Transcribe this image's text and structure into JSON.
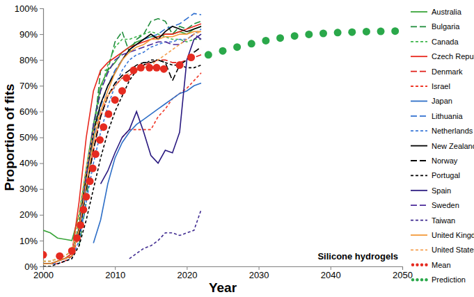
{
  "chart_data": {
    "type": "line",
    "x_label": "Year",
    "y_label": "Proportion of fits",
    "annotations": [
      {
        "text": "Silicone hydrogels"
      }
    ],
    "xlim": [
      2000,
      2050
    ],
    "ylim": [
      0,
      100
    ],
    "xticks": [
      2000,
      2010,
      2020,
      2030,
      2040,
      2050
    ],
    "yticks": [
      {
        "value": 0,
        "label": "0%"
      },
      {
        "value": 10,
        "label": "10%"
      },
      {
        "value": 20,
        "label": "20%"
      },
      {
        "value": 30,
        "label": "30%"
      },
      {
        "value": 40,
        "label": "40%"
      },
      {
        "value": 50,
        "label": "50%"
      },
      {
        "value": 60,
        "label": "60%"
      },
      {
        "value": 70,
        "label": "70%"
      },
      {
        "value": 80,
        "label": "80%"
      },
      {
        "value": 90,
        "label": "90%"
      },
      {
        "value": 100,
        "label": "100%"
      }
    ],
    "grid": false,
    "legend": "right",
    "series": [
      {
        "name": "Australia",
        "color": "#3aa53a",
        "line_style": "solid",
        "x": [
          2000,
          2001,
          2002,
          2003,
          2004,
          2005,
          2006,
          2007,
          2008,
          2009,
          2010,
          2011,
          2012,
          2013,
          2014,
          2015,
          2016,
          2017,
          2018,
          2019,
          2020,
          2021,
          2022
        ],
        "values": [
          14,
          13,
          11,
          10.5,
          10,
          20,
          38,
          55,
          70,
          76,
          79,
          83,
          85,
          87,
          88,
          89,
          89,
          90,
          90,
          91,
          90,
          92,
          93
        ]
      },
      {
        "name": "Bulgaria",
        "color": "#1e8c3a",
        "line_style": "longdash",
        "x": [
          2005,
          2006,
          2007,
          2008,
          2009,
          2010,
          2011,
          2012,
          2013,
          2014,
          2015,
          2016,
          2017,
          2018,
          2019,
          2020,
          2021,
          2022
        ],
        "values": [
          8,
          25,
          50,
          76,
          76,
          87,
          91,
          83,
          88,
          90,
          95,
          96,
          95,
          90,
          93,
          92,
          94,
          95
        ]
      },
      {
        "name": "Canada",
        "color": "#3cb54a",
        "line_style": "dashed",
        "x": [
          2000,
          2001,
          2002,
          2003,
          2004,
          2005,
          2006,
          2007,
          2008,
          2009,
          2010,
          2011,
          2012,
          2013,
          2014,
          2015,
          2016,
          2017,
          2018,
          2019,
          2020,
          2021,
          2022
        ],
        "values": [
          2,
          2,
          3,
          4,
          6,
          18,
          35,
          52,
          68,
          78,
          85,
          88,
          88,
          89,
          90,
          91,
          90,
          89,
          88,
          88,
          87,
          88,
          88
        ]
      },
      {
        "name": "Czech Republic",
        "color": "#e8261c",
        "line_style": "solid",
        "x": [
          2000,
          2001,
          2002,
          2003,
          2004,
          2005,
          2006,
          2007,
          2008,
          2009,
          2010,
          2011,
          2012,
          2013,
          2014,
          2015,
          2016,
          2017,
          2018,
          2019,
          2020,
          2021,
          2022
        ],
        "values": [
          1,
          1,
          2,
          3,
          5,
          25,
          50,
          68,
          76,
          79,
          81,
          83,
          85,
          86,
          87,
          88,
          89,
          90,
          90,
          91,
          92,
          93,
          94
        ]
      },
      {
        "name": "Denmark",
        "color": "#e0201a",
        "line_style": "longdash",
        "x": [
          2000,
          2001,
          2002,
          2003,
          2004,
          2005,
          2006,
          2007,
          2008,
          2009,
          2010,
          2011,
          2012,
          2013,
          2014,
          2015,
          2016,
          2017,
          2018,
          2019,
          2020,
          2021,
          2022
        ],
        "values": [
          1,
          1,
          1,
          2,
          4,
          12,
          30,
          45,
          58,
          66,
          70,
          73,
          74,
          76,
          78,
          79,
          80,
          80,
          79,
          79,
          80,
          81,
          82
        ]
      },
      {
        "name": "Israel",
        "color": "#f03a2a",
        "line_style": "dashed",
        "x": [
          2011,
          2012,
          2013,
          2014,
          2015,
          2016,
          2017,
          2018,
          2019,
          2020,
          2021,
          2022
        ],
        "values": [
          50,
          53,
          53,
          53,
          53,
          58,
          61,
          65,
          67,
          69,
          72,
          75
        ]
      },
      {
        "name": "Japan",
        "color": "#2e6fc7",
        "line_style": "solid",
        "x": [
          2007,
          2008,
          2009,
          2010,
          2011,
          2012,
          2013,
          2014,
          2015,
          2016,
          2017,
          2018,
          2019,
          2020,
          2021,
          2022
        ],
        "values": [
          9,
          18,
          32,
          42,
          48,
          52,
          55,
          57,
          59,
          61,
          63,
          65,
          67,
          68,
          70,
          71
        ]
      },
      {
        "name": "Lithuania",
        "color": "#2f6fd0",
        "line_style": "longdash",
        "x": [
          2005,
          2006,
          2007,
          2008,
          2009,
          2010,
          2011,
          2012,
          2013,
          2014,
          2015,
          2016,
          2017,
          2018,
          2019,
          2020,
          2021,
          2022
        ],
        "values": [
          10,
          30,
          50,
          62,
          70,
          76,
          80,
          84,
          86,
          88,
          89,
          90,
          92,
          93,
          94,
          96,
          98,
          97.5
        ]
      },
      {
        "name": "Netherlands",
        "color": "#3a78d8",
        "line_style": "dashed",
        "x": [
          2000,
          2001,
          2002,
          2003,
          2004,
          2005,
          2006,
          2007,
          2008,
          2009,
          2010,
          2011,
          2012,
          2013,
          2014,
          2015,
          2016,
          2017,
          2018,
          2019,
          2020,
          2021,
          2022
        ],
        "values": [
          1,
          1,
          1,
          2,
          3,
          10,
          25,
          40,
          52,
          62,
          70,
          76,
          80,
          82,
          83,
          85,
          86,
          87,
          87,
          88,
          88,
          90,
          92
        ]
      },
      {
        "name": "New Zealand",
        "color": "#000000",
        "line_style": "solid",
        "x": [
          2000,
          2001,
          2002,
          2003,
          2004,
          2005,
          2006,
          2007,
          2008,
          2009,
          2010,
          2011,
          2012,
          2013,
          2014,
          2015,
          2016,
          2017,
          2018,
          2019,
          2020,
          2021,
          2022
        ],
        "values": [
          1,
          1,
          2,
          3,
          4,
          15,
          35,
          52,
          63,
          70,
          75,
          80,
          84,
          86,
          88,
          90,
          88,
          91,
          93,
          92,
          91,
          92,
          93
        ]
      },
      {
        "name": "Norway",
        "color": "#000000",
        "line_style": "longdash",
        "x": [
          2005,
          2006,
          2007,
          2008,
          2009,
          2010,
          2011,
          2012,
          2013,
          2014,
          2015,
          2016,
          2017,
          2018,
          2019,
          2020,
          2021,
          2022
        ],
        "values": [
          12,
          30,
          45,
          58,
          66,
          71,
          74,
          76,
          78,
          79,
          79,
          80,
          79,
          72,
          78,
          80,
          83,
          85
        ]
      },
      {
        "name": "Portugal",
        "color": "#000000",
        "line_style": "dashed",
        "x": [
          2000,
          2001,
          2002,
          2003,
          2004,
          2005,
          2006,
          2007,
          2008,
          2009,
          2010,
          2011,
          2012,
          2013,
          2014,
          2015,
          2016,
          2017,
          2018,
          2019,
          2020,
          2021,
          2022
        ],
        "values": [
          0,
          0,
          1,
          2,
          3,
          8,
          18,
          30,
          42,
          52,
          60,
          66,
          72,
          76,
          78,
          80,
          80,
          79,
          78,
          78,
          77,
          77,
          78
        ]
      },
      {
        "name": "Spain",
        "color": "#2a1a80",
        "line_style": "solid",
        "x": [
          2008,
          2009,
          2010,
          2011,
          2012,
          2013,
          2014,
          2015,
          2016,
          2017,
          2018,
          2019,
          2020,
          2021,
          2022
        ],
        "values": [
          32,
          37,
          44,
          50,
          53,
          60,
          52,
          43,
          40,
          45,
          44,
          52,
          80,
          88,
          90
        ]
      },
      {
        "name": "Sweden",
        "color": "#4b2a9a",
        "line_style": "longdash",
        "x": [
          2005,
          2006,
          2007,
          2008,
          2009,
          2010,
          2011,
          2012,
          2013,
          2014,
          2015,
          2016,
          2017,
          2018,
          2019,
          2020,
          2021,
          2022
        ],
        "values": [
          15,
          35,
          55,
          68,
          75,
          80,
          82,
          83,
          84,
          85,
          86,
          87,
          87,
          86,
          86,
          88,
          90,
          88
        ]
      },
      {
        "name": "Taiwan",
        "color": "#3f2a90",
        "line_style": "dashed",
        "x": [
          2012,
          2013,
          2014,
          2015,
          2016,
          2017,
          2018,
          2019,
          2020,
          2021,
          2022
        ],
        "values": [
          3,
          5,
          7,
          8,
          10,
          13,
          13,
          12,
          13,
          14,
          22
        ]
      },
      {
        "name": "United Kingdom",
        "color": "#f39a3a",
        "line_style": "solid",
        "x": [
          2000,
          2001,
          2002,
          2003,
          2004,
          2005,
          2006,
          2007,
          2008,
          2009,
          2010,
          2011,
          2012,
          2013,
          2014,
          2015,
          2016,
          2017,
          2018,
          2019,
          2020,
          2021,
          2022
        ],
        "values": [
          1,
          1,
          2,
          3,
          4,
          14,
          32,
          48,
          60,
          68,
          75,
          80,
          83,
          85,
          86,
          88,
          88,
          89,
          89,
          90,
          90,
          91,
          91
        ]
      },
      {
        "name": "United States",
        "color": "#f5a050",
        "line_style": "dashed",
        "x": [
          2000,
          2001,
          2002,
          2003,
          2004,
          2005,
          2006,
          2007,
          2008,
          2009,
          2010,
          2011,
          2012,
          2013,
          2014,
          2015,
          2016,
          2017,
          2018,
          2019,
          2020,
          2021,
          2022
        ],
        "values": [
          2,
          2,
          3,
          4,
          6,
          20,
          38,
          52,
          60,
          66,
          70,
          73,
          75,
          76,
          77,
          78,
          80,
          82,
          84,
          86,
          88,
          90,
          91
        ]
      },
      {
        "name": "Mean",
        "color": "#e52b20",
        "type": "scatter",
        "marker": "circle",
        "x": [
          2000,
          2002.3,
          2004,
          2004.7,
          2005.2,
          2005.6,
          2006,
          2006.5,
          2006.9,
          2007.3,
          2007.9,
          2008.4,
          2009.1,
          2010,
          2011,
          2011.6,
          2012.6,
          2013.6,
          2014.8,
          2015.8,
          2016.8,
          2019,
          2020.6
        ],
        "values": [
          4.5,
          4,
          6,
          11,
          16,
          22,
          27,
          33,
          38,
          43.5,
          49,
          54,
          59,
          64.5,
          68,
          73,
          76,
          77,
          77,
          77,
          76.5,
          78,
          81
        ]
      },
      {
        "name": "Prediction",
        "color": "#2aa84a",
        "type": "scatter",
        "marker": "circle",
        "x": [
          2023,
          2025,
          2027,
          2029,
          2031,
          2033,
          2035,
          2037,
          2039,
          2041,
          2043,
          2045,
          2047,
          2049
        ],
        "values": [
          82,
          83.5,
          85,
          86.3,
          87.5,
          88.5,
          89.3,
          89.9,
          90.3,
          90.6,
          90.8,
          91,
          91.1,
          91.2
        ]
      }
    ]
  }
}
